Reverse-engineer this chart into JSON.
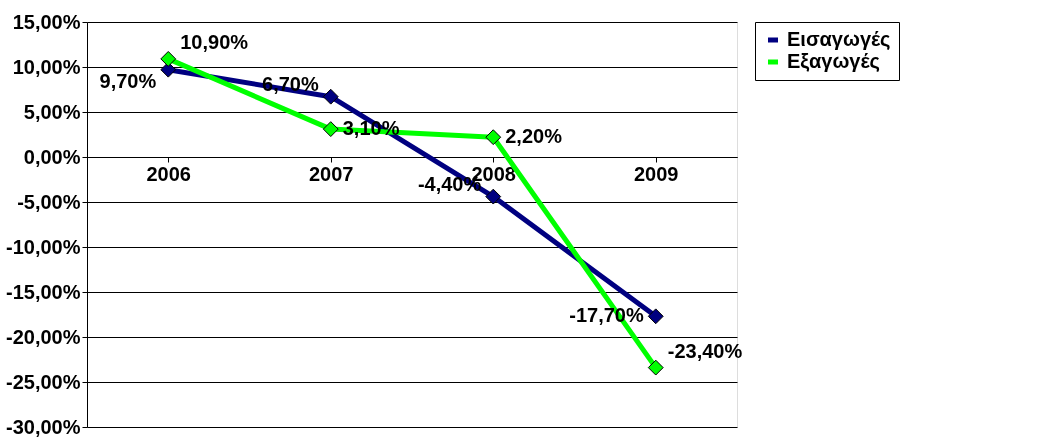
{
  "chart_data": {
    "type": "line",
    "categories": [
      "2006",
      "2007",
      "2008",
      "2009"
    ],
    "series": [
      {
        "name": "Εισαγωγές",
        "color": "#000080",
        "values": [
          9.7,
          6.7,
          -4.4,
          -17.7
        ],
        "value_labels": [
          "9,70%",
          "6,70%",
          "-4,40%",
          "-17,70%"
        ]
      },
      {
        "name": "Εξαγωγές",
        "color": "#00ff00",
        "values": [
          10.9,
          3.1,
          2.2,
          -23.4
        ],
        "value_labels": [
          "10,90%",
          "3,10%",
          "2,20%",
          "-23,40%"
        ]
      }
    ],
    "ylim": [
      -30,
      15
    ],
    "yticks": [
      {
        "value": -30,
        "label": "-30,00%"
      },
      {
        "value": -25,
        "label": "-25,00%"
      },
      {
        "value": -20,
        "label": "-20,00%"
      },
      {
        "value": -15,
        "label": "-15,00%"
      },
      {
        "value": -10,
        "label": "-10,00%"
      },
      {
        "value": -5,
        "label": "-5,00%"
      },
      {
        "value": 0,
        "label": "0,00%"
      },
      {
        "value": 5,
        "label": "5,00%"
      },
      {
        "value": 10,
        "label": "10,00%"
      },
      {
        "value": 15,
        "label": "15,00%"
      }
    ],
    "grid": "y",
    "legend": "right",
    "marker": "diamond",
    "line_style": "solid"
  }
}
